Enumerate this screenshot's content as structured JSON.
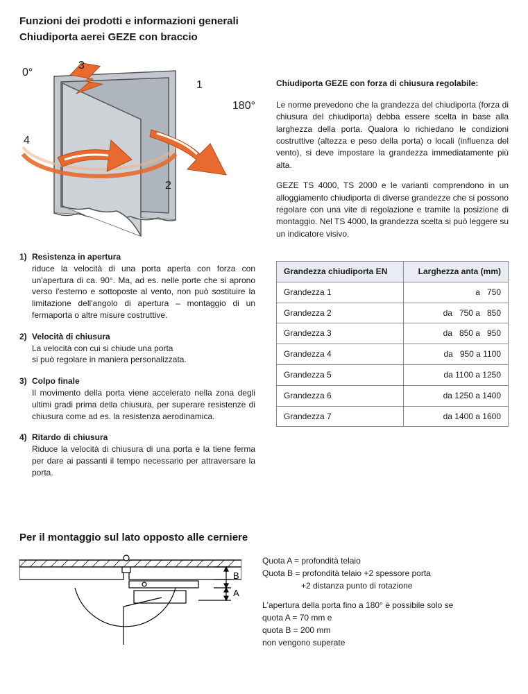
{
  "title_line1": "Funzioni dei prodotti e informazioni generali",
  "title_line2": "Chiudiporta aerei GEZE con braccio",
  "diagram": {
    "label_0": "0°",
    "label_180": "180°",
    "label_1": "1",
    "label_2": "2",
    "label_3": "3",
    "label_4": "4",
    "door_fill": "#b7bdc4",
    "door_stroke": "#555555",
    "arrow_fill": "#e86a2e",
    "arrow_inner": "#ffffff",
    "arc_stroke": "#e86a2e",
    "arc_stroke_2": "#f2b28a"
  },
  "right_heading": "Chiudiporta GEZE con forza di chiusura regolabile:",
  "para1": "Le norme prevedono che la grandezza del chiudiporta (forza di chiusura del chiudiporta) debba essere scelta in base alla larghezza della porta. Qualora lo richiedano le condizioni costruttive (altezza e peso della porta) o locali (influenza del vento), si deve impostare la grandezza immediatamente più alta.",
  "para2": "GEZE TS 4000, TS 2000 e le varianti comprendono in un alloggiamento chiudiporta di diverse grandezze che si possono regolare con una vite di regolazione e tramite la posizione di montaggio. Nel TS 4000, la grandezza scelta si può leggere su un indicatore visivo.",
  "table": {
    "header_col1": "Grandezza chiudiporta EN",
    "header_col2": "Larghezza anta (mm)",
    "rows": [
      {
        "c1": "Grandezza 1",
        "c2": "a   750"
      },
      {
        "c1": "Grandezza 2",
        "c2": "da   750 a   850"
      },
      {
        "c1": "Grandezza 3",
        "c2": "da   850 a   950"
      },
      {
        "c1": "Grandezza 4",
        "c2": "da   950 a 1100"
      },
      {
        "c1": "Grandezza 5",
        "c2": "da 1100 a 1250"
      },
      {
        "c1": "Grandezza 6",
        "c2": "da 1250 a 1400"
      },
      {
        "c1": "Grandezza 7",
        "c2": "da 1400 a 1600"
      }
    ]
  },
  "functions": [
    {
      "num": "1)",
      "title": "Resistenza in apertura",
      "body": "riduce la velocità di una porta aperta con forza con un'apertura di ca. 90°. Ma, ad es. nelle porte che si aprono verso l'esterno e sottoposte al vento, non può sostituire la limitazione dell'angolo di apertura – montaggio di un fermaporta o altre misure costruttive."
    },
    {
      "num": "2)",
      "title": "Velocità di chiusura",
      "body": "La velocità con cui si chiude una porta\nsi può regolare in maniera personalizzata."
    },
    {
      "num": "3)",
      "title": "Colpo finale",
      "body": "Il movimento della porta viene accelerato nella zona degli ultimi gradi prima della chiusura, per superare resistenze di chiusura come ad es. la resistenza aerodinamica."
    },
    {
      "num": "4)",
      "title": "Ritardo di chiusura",
      "body": "Riduce la velocità di chiusura di una porta e la tiene ferma per dare ai passanti il tempo necessario per attraversare la porta."
    }
  ],
  "section2": {
    "title": "Per il montaggio sul lato opposto alle cerniere",
    "line1": "Quota A = profondità telaio",
    "line2": "Quota B = profondità telaio +2 spessore porta",
    "line3": "+2 distanza punto di rotazione",
    "line4": "L'apertura della porta fino a 180° è possibile solo se",
    "line5": "quota A = 70 mm e",
    "line6": "quota B = 200 mm",
    "line7": "non vengono superate",
    "label_A": "A",
    "label_B": "B"
  }
}
